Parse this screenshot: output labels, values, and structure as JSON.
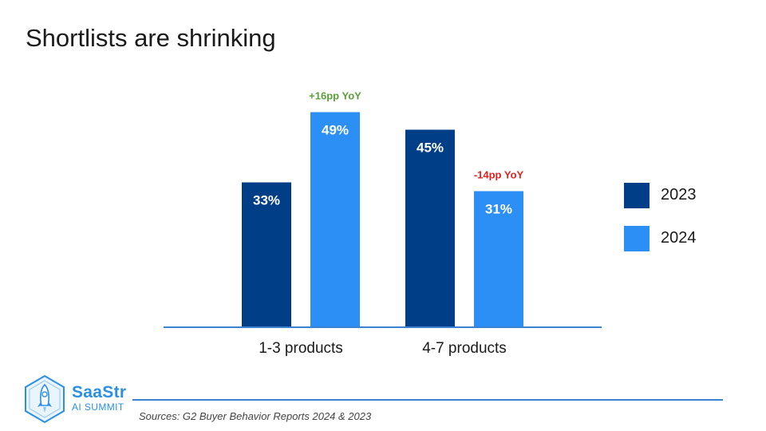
{
  "slide": {
    "title": "Shortlists are shrinking",
    "source": "Sources: G2 Buyer Behavior Reports 2024 & 2023"
  },
  "logo": {
    "line1": "SaaStr",
    "line2": "AI SUMMIT",
    "icon": "rocket-hexagon-icon",
    "color": "#2a8fe6"
  },
  "colors": {
    "series_2023": "#003f87",
    "series_2024": "#2b8ff5",
    "axis": "#3b82d4",
    "positive": "#5b9f3a",
    "negative": "#e02020"
  },
  "chart_data": {
    "type": "bar",
    "title": "Shortlists are shrinking",
    "categories": [
      "1-3 products",
      "4-7 products"
    ],
    "series": [
      {
        "name": "2023",
        "values": [
          33,
          45
        ],
        "labels": [
          "33%",
          "45%"
        ]
      },
      {
        "name": "2024",
        "values": [
          49,
          31
        ],
        "labels": [
          "49%",
          "31%"
        ]
      }
    ],
    "annotations": [
      {
        "category": "1-3 products",
        "series": "2024",
        "text": "+16pp YoY",
        "tone": "positive"
      },
      {
        "category": "4-7 products",
        "series": "2024",
        "text": "-14pp YoY",
        "tone": "negative"
      }
    ],
    "ylim": [
      0,
      50
    ],
    "xlabel": "",
    "ylabel": "",
    "grid": false,
    "legend_position": "right"
  }
}
